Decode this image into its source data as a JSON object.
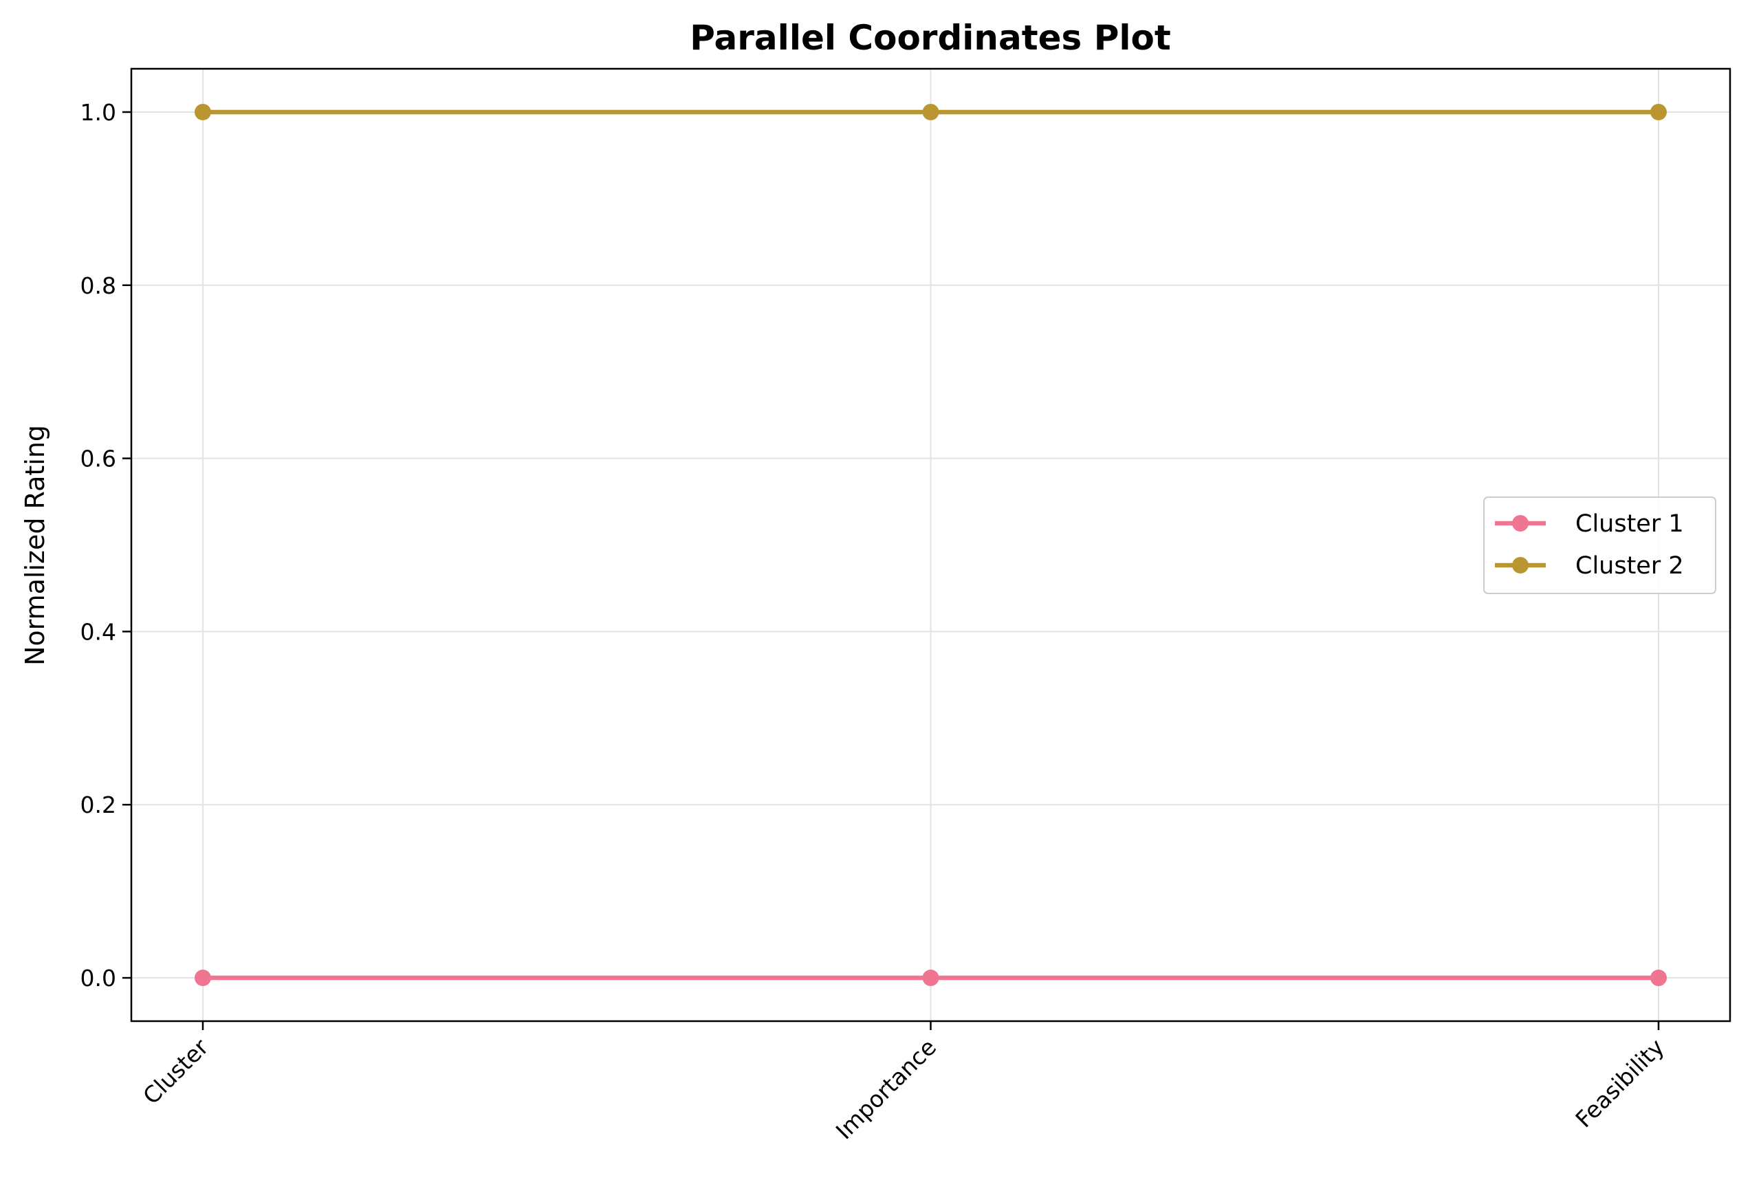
{
  "chart_data": {
    "type": "line",
    "title": "Parallel Coordinates Plot",
    "xlabel": "",
    "ylabel": "Normalized Rating",
    "categories": [
      "Cluster",
      "Importance",
      "Feasibility"
    ],
    "ylim": [
      -0.05,
      1.05
    ],
    "yticks": [
      "0.0",
      "0.2",
      "0.4",
      "0.6",
      "0.8",
      "1.0"
    ],
    "grid": true,
    "legend_position": "center-right",
    "series": [
      {
        "name": "Cluster 1",
        "color": "#f07590",
        "values": [
          0,
          0,
          0
        ]
      },
      {
        "name": "Cluster 2",
        "color": "#b9962f",
        "values": [
          1,
          1,
          1
        ]
      }
    ]
  }
}
